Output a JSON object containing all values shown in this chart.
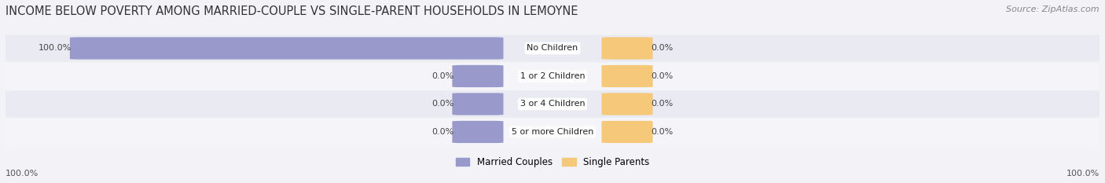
{
  "title": "INCOME BELOW POVERTY AMONG MARRIED-COUPLE VS SINGLE-PARENT HOUSEHOLDS IN LEMOYNE",
  "source": "Source: ZipAtlas.com",
  "categories": [
    "No Children",
    "1 or 2 Children",
    "3 or 4 Children",
    "5 or more Children"
  ],
  "married_values": [
    100.0,
    0.0,
    0.0,
    0.0
  ],
  "single_values": [
    0.0,
    0.0,
    0.0,
    0.0
  ],
  "married_color": "#9999cc",
  "single_color": "#f5c87a",
  "bg_color": "#f2f2f7",
  "row_color_even": "#eaeaf2",
  "row_color_odd": "#f5f5f9",
  "title_fontsize": 10.5,
  "source_fontsize": 8,
  "label_fontsize": 8,
  "cat_fontsize": 8,
  "legend_fontsize": 8.5,
  "max_val": 100.0,
  "left_axis_label": "100.0%",
  "right_axis_label": "100.0%"
}
